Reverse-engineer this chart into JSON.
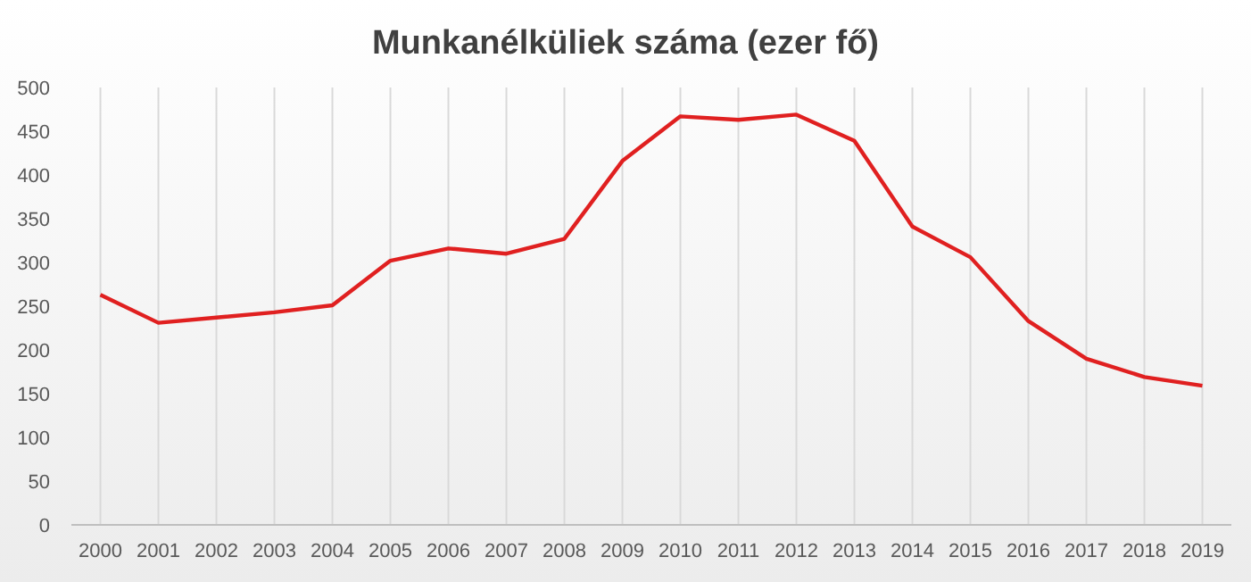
{
  "chart_data": {
    "type": "line",
    "title": "Munkanélküliek száma (ezer fő)",
    "categories": [
      "2000",
      "2001",
      "2002",
      "2003",
      "2004",
      "2005",
      "2006",
      "2007",
      "2008",
      "2009",
      "2010",
      "2011",
      "2012",
      "2013",
      "2014",
      "2015",
      "2016",
      "2017",
      "2018",
      "2019"
    ],
    "series": [
      {
        "color": "#e02020",
        "values": [
          263,
          231,
          237,
          243,
          251,
          302,
          316,
          310,
          327,
          416,
          467,
          463,
          469,
          439,
          341,
          306,
          233,
          190,
          169,
          159
        ]
      }
    ],
    "ylim": [
      0,
      500
    ],
    "yticks": [
      0,
      50,
      100,
      150,
      200,
      250,
      300,
      350,
      400,
      450,
      500
    ],
    "grid": "x",
    "marker": "none",
    "line_style": "solid"
  }
}
